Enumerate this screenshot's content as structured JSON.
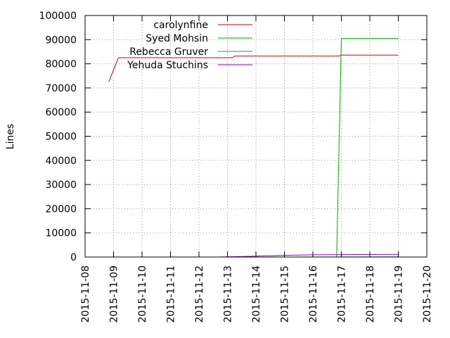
{
  "chart_data": {
    "type": "line",
    "title": "",
    "xlabel": "",
    "ylabel": "Lines",
    "grid": true,
    "legend_position": "top-left",
    "xlim": [
      "2015-11-08",
      "2015-11-20"
    ],
    "ylim": [
      0,
      100000
    ],
    "x_ticks": [
      "2015-11-08",
      "2015-11-09",
      "2015-11-10",
      "2015-11-11",
      "2015-11-12",
      "2015-11-13",
      "2015-11-14",
      "2015-11-15",
      "2015-11-16",
      "2015-11-17",
      "2015-11-18",
      "2015-11-19",
      "2015-11-20"
    ],
    "y_ticks": [
      "0",
      "10000",
      "20000",
      "30000",
      "40000",
      "50000",
      "60000",
      "70000",
      "80000",
      "90000",
      "100000"
    ],
    "series": [
      {
        "name": "carolynfine",
        "color": "#cc0000",
        "points": [
          [
            "2015-11-08 20:00",
            72500
          ],
          [
            "2015-11-09 04:00",
            82500
          ],
          [
            "2015-11-13 04:00",
            82500
          ],
          [
            "2015-11-13 06:00",
            83200
          ],
          [
            "2015-11-16 22:00",
            83200
          ],
          [
            "2015-11-17 00:00",
            83600
          ],
          [
            "2015-11-19 00:00",
            83600
          ]
        ]
      },
      {
        "name": "Syed Mohsin",
        "color": "#00aa00",
        "points": [
          [
            "2015-11-16 20:00",
            0
          ],
          [
            "2015-11-17 00:00",
            90500
          ],
          [
            "2015-11-19 00:00",
            90500
          ]
        ]
      },
      {
        "name": "Rebecca Gruver",
        "color": "#1a7fc0",
        "points": [
          [
            "2015-11-12 16:00",
            0
          ],
          [
            "2015-11-19 00:00",
            50
          ]
        ]
      },
      {
        "name": "Yehuda Stuchins",
        "color": "#8800cc",
        "points": [
          [
            "2015-11-12 16:00",
            0
          ],
          [
            "2015-11-13 20:00",
            300
          ],
          [
            "2015-11-14 08:00",
            500
          ],
          [
            "2015-11-15 00:00",
            700
          ],
          [
            "2015-11-16 00:00",
            900
          ],
          [
            "2015-11-17 00:00",
            1000
          ],
          [
            "2015-11-19 00:00",
            1100
          ]
        ]
      }
    ]
  }
}
